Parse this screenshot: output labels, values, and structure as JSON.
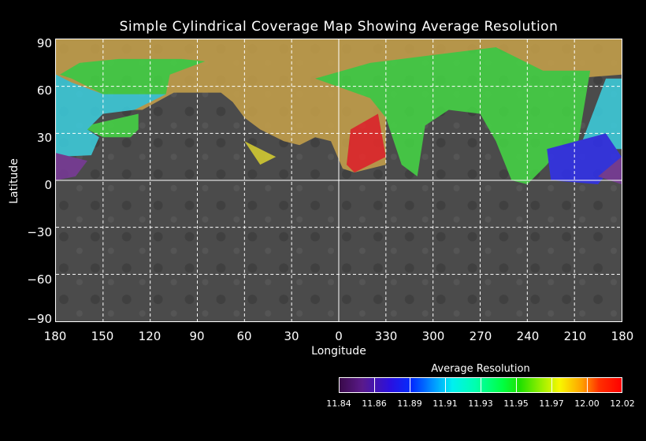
{
  "title": "Simple Cylindrical Coverage Map Showing Average Resolution",
  "ylabel": "Latitude",
  "xlabel": "Longitude",
  "lat_ticks": [
    "90",
    "60",
    "30",
    "0",
    "−30",
    "−60",
    "−90"
  ],
  "lon_ticks": [
    "180",
    "150",
    "120",
    "90",
    "60",
    "30",
    "0",
    "330",
    "300",
    "270",
    "240",
    "210",
    "180"
  ],
  "colorbar": {
    "title": "Average Resolution",
    "ticks": [
      "11.84",
      "11.86",
      "11.89",
      "11.91",
      "11.93",
      "11.95",
      "11.97",
      "12.00",
      "12.02"
    ],
    "range": [
      11.84,
      12.02
    ]
  },
  "colors": {
    "tan": "#c8a24a",
    "green": "#44d844",
    "cyan": "#3cd0e0",
    "blue": "#3030f0",
    "purple": "#7a3a9a",
    "red": "#f02a2a",
    "yellow": "#d8d030",
    "surface": "#4a4a4a"
  }
}
